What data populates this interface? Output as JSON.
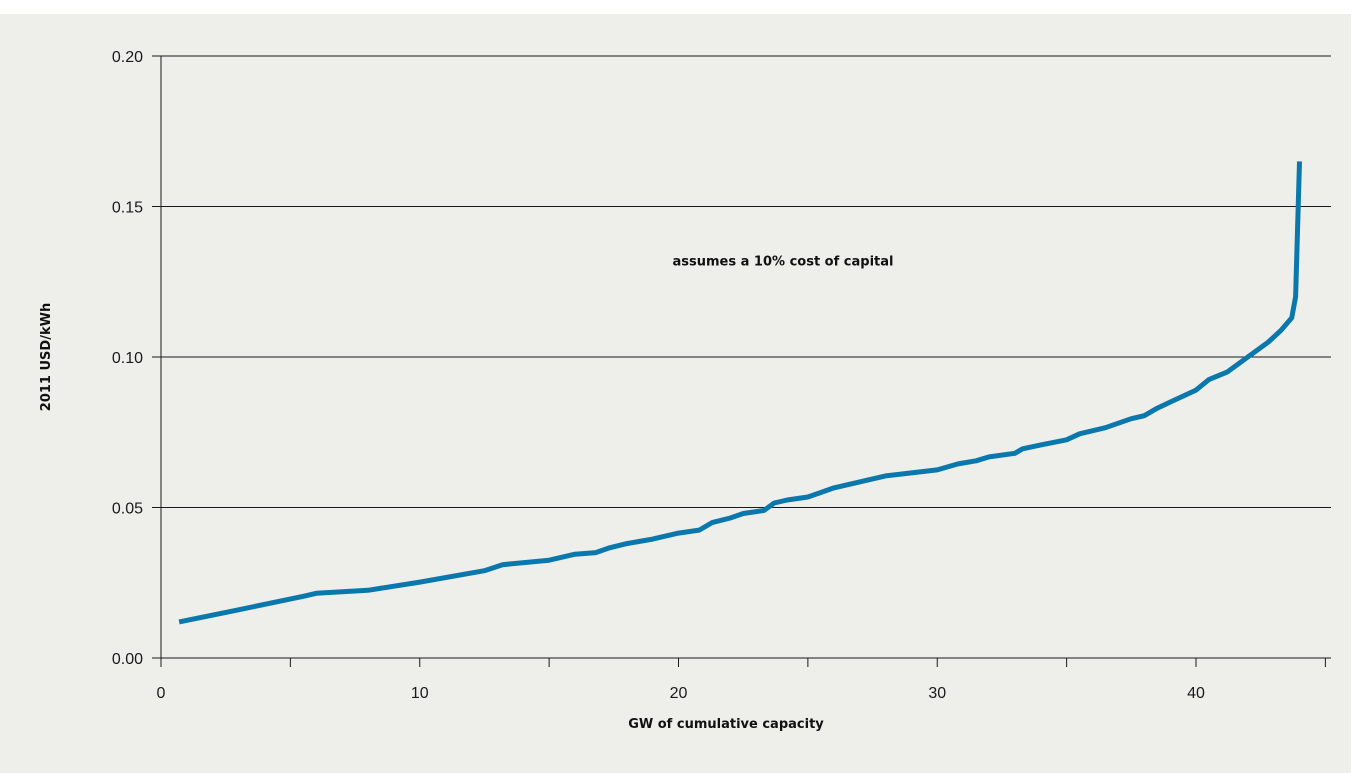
{
  "chart_data": {
    "type": "line",
    "title": "",
    "xlabel": "GW of cumulative capacity",
    "ylabel": "2011 USD/kWh",
    "xlim": [
      0,
      45
    ],
    "ylim": [
      0,
      0.2
    ],
    "x_ticks": [
      0,
      10,
      20,
      30,
      40
    ],
    "x_tick_labels": [
      "0",
      "10",
      "20",
      "30",
      "40"
    ],
    "y_ticks": [
      0,
      0.05,
      0.1,
      0.15,
      0.2
    ],
    "y_tick_labels": [
      "0.00",
      "0.05",
      "0.10",
      "0.15",
      "0.20"
    ],
    "grid": "horizontal",
    "legend": "none",
    "annotations": [
      {
        "text": "assumes a 10% cost of capital",
        "x": 22.5,
        "y": 0.132
      }
    ],
    "series": [
      {
        "color": "#0a78ad",
        "x": [
          0.7,
          3.0,
          5.5,
          6.0,
          8.0,
          10.0,
          12.5,
          13.2,
          15.0,
          16.0,
          16.8,
          17.3,
          18.0,
          19.0,
          20.0,
          20.8,
          21.3,
          22.0,
          22.5,
          23.3,
          23.7,
          24.2,
          25.0,
          25.5,
          26.0,
          27.0,
          28.0,
          29.0,
          30.0,
          30.8,
          31.5,
          32.0,
          33.0,
          33.3,
          34.0,
          35.0,
          35.5,
          36.5,
          37.5,
          38.0,
          38.5,
          39.0,
          40.0,
          40.5,
          41.2,
          42.0,
          42.8,
          43.3,
          43.7,
          43.85,
          44.0
        ],
        "values": [
          0.012,
          0.016,
          0.0205,
          0.0215,
          0.0225,
          0.0252,
          0.029,
          0.031,
          0.0325,
          0.0345,
          0.035,
          0.0365,
          0.038,
          0.0395,
          0.0415,
          0.0425,
          0.045,
          0.0465,
          0.048,
          0.049,
          0.0515,
          0.0525,
          0.0535,
          0.055,
          0.0565,
          0.0585,
          0.0605,
          0.0615,
          0.0625,
          0.0645,
          0.0655,
          0.0668,
          0.068,
          0.0695,
          0.0708,
          0.0725,
          0.0745,
          0.0765,
          0.0795,
          0.0805,
          0.083,
          0.085,
          0.089,
          0.0925,
          0.095,
          0.1,
          0.105,
          0.109,
          0.113,
          0.12,
          0.165
        ]
      }
    ]
  }
}
